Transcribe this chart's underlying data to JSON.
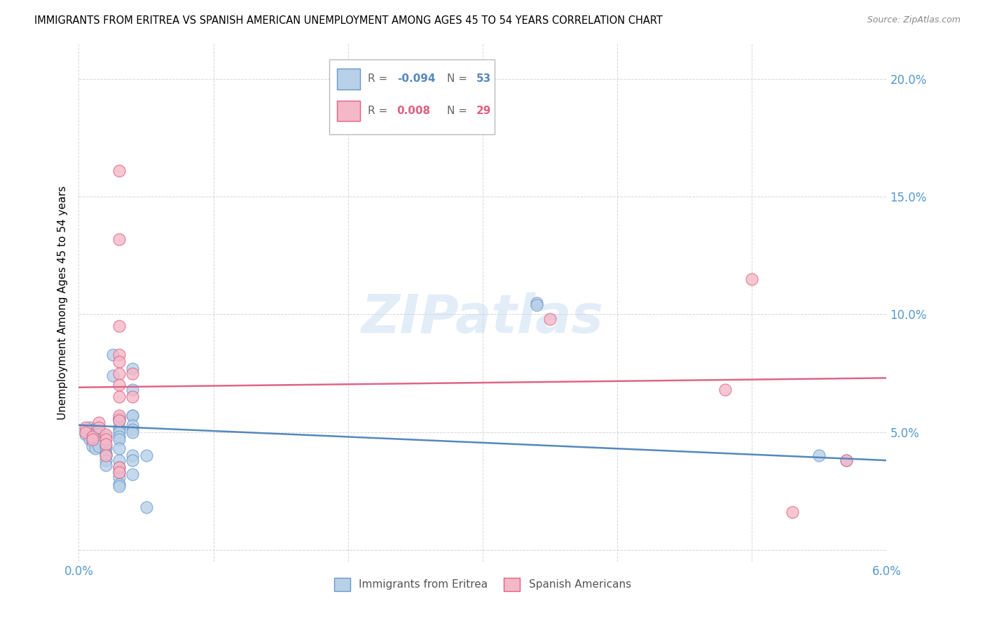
{
  "title": "IMMIGRANTS FROM ERITREA VS SPANISH AMERICAN UNEMPLOYMENT AMONG AGES 45 TO 54 YEARS CORRELATION CHART",
  "source": "Source: ZipAtlas.com",
  "ylabel": "Unemployment Among Ages 45 to 54 years",
  "xlim": [
    0.0,
    0.06
  ],
  "ylim": [
    -0.005,
    0.215
  ],
  "yticks": [
    0.0,
    0.05,
    0.1,
    0.15,
    0.2
  ],
  "ytick_labels": [
    "",
    "5.0%",
    "10.0%",
    "15.0%",
    "20.0%"
  ],
  "xticks": [
    0.0,
    0.01,
    0.02,
    0.03,
    0.04,
    0.05,
    0.06
  ],
  "xtick_labels": [
    "0.0%",
    "",
    "",
    "",
    "",
    "",
    "6.0%"
  ],
  "legend_entry1_R": "-0.094",
  "legend_entry1_N": "53",
  "legend_entry2_R": "0.008",
  "legend_entry2_N": "29",
  "watermark": "ZIPatlas",
  "blue_fill": "#b8d0e8",
  "blue_edge": "#6699cc",
  "pink_fill": "#f5b8c8",
  "pink_edge": "#e06080",
  "line_blue_color": "#5588bb",
  "line_pink_color": "#dd6688",
  "axis_label_color": "#5599cc",
  "grid_color": "#cccccc",
  "blue_scatter": [
    [
      0.0005,
      0.051
    ],
    [
      0.0005,
      0.049
    ],
    [
      0.0008,
      0.052
    ],
    [
      0.0008,
      0.047
    ],
    [
      0.001,
      0.051
    ],
    [
      0.001,
      0.049
    ],
    [
      0.001,
      0.048
    ],
    [
      0.001,
      0.046
    ],
    [
      0.001,
      0.044
    ],
    [
      0.0012,
      0.043
    ],
    [
      0.0015,
      0.049
    ],
    [
      0.0015,
      0.047
    ],
    [
      0.0015,
      0.044
    ],
    [
      0.002,
      0.048
    ],
    [
      0.002,
      0.044
    ],
    [
      0.002,
      0.043
    ],
    [
      0.002,
      0.041
    ],
    [
      0.002,
      0.04
    ],
    [
      0.002,
      0.038
    ],
    [
      0.002,
      0.036
    ],
    [
      0.0025,
      0.083
    ],
    [
      0.0025,
      0.074
    ],
    [
      0.003,
      0.056
    ],
    [
      0.003,
      0.056
    ],
    [
      0.003,
      0.055
    ],
    [
      0.003,
      0.052
    ],
    [
      0.003,
      0.051
    ],
    [
      0.003,
      0.05
    ],
    [
      0.003,
      0.048
    ],
    [
      0.003,
      0.047
    ],
    [
      0.003,
      0.043
    ],
    [
      0.003,
      0.038
    ],
    [
      0.003,
      0.035
    ],
    [
      0.003,
      0.033
    ],
    [
      0.003,
      0.031
    ],
    [
      0.003,
      0.028
    ],
    [
      0.003,
      0.027
    ],
    [
      0.004,
      0.077
    ],
    [
      0.004,
      0.068
    ],
    [
      0.004,
      0.057
    ],
    [
      0.004,
      0.057
    ],
    [
      0.004,
      0.053
    ],
    [
      0.004,
      0.051
    ],
    [
      0.004,
      0.05
    ],
    [
      0.004,
      0.04
    ],
    [
      0.004,
      0.038
    ],
    [
      0.004,
      0.032
    ],
    [
      0.005,
      0.04
    ],
    [
      0.005,
      0.018
    ],
    [
      0.034,
      0.105
    ],
    [
      0.034,
      0.104
    ],
    [
      0.055,
      0.04
    ],
    [
      0.057,
      0.038
    ]
  ],
  "pink_scatter": [
    [
      0.0005,
      0.052
    ],
    [
      0.0005,
      0.05
    ],
    [
      0.001,
      0.048
    ],
    [
      0.001,
      0.047
    ],
    [
      0.0015,
      0.054
    ],
    [
      0.0015,
      0.052
    ],
    [
      0.002,
      0.049
    ],
    [
      0.002,
      0.047
    ],
    [
      0.002,
      0.045
    ],
    [
      0.002,
      0.04
    ],
    [
      0.003,
      0.161
    ],
    [
      0.003,
      0.132
    ],
    [
      0.003,
      0.095
    ],
    [
      0.003,
      0.083
    ],
    [
      0.003,
      0.08
    ],
    [
      0.003,
      0.075
    ],
    [
      0.003,
      0.07
    ],
    [
      0.003,
      0.065
    ],
    [
      0.003,
      0.057
    ],
    [
      0.003,
      0.055
    ],
    [
      0.003,
      0.035
    ],
    [
      0.003,
      0.033
    ],
    [
      0.004,
      0.075
    ],
    [
      0.004,
      0.065
    ],
    [
      0.035,
      0.098
    ],
    [
      0.048,
      0.068
    ],
    [
      0.05,
      0.115
    ],
    [
      0.053,
      0.016
    ],
    [
      0.057,
      0.038
    ]
  ],
  "blue_trend_x": [
    0.0,
    0.06
  ],
  "blue_trend_y": [
    0.053,
    0.038
  ],
  "pink_trend_x": [
    0.0,
    0.06
  ],
  "pink_trend_y": [
    0.069,
    0.073
  ]
}
